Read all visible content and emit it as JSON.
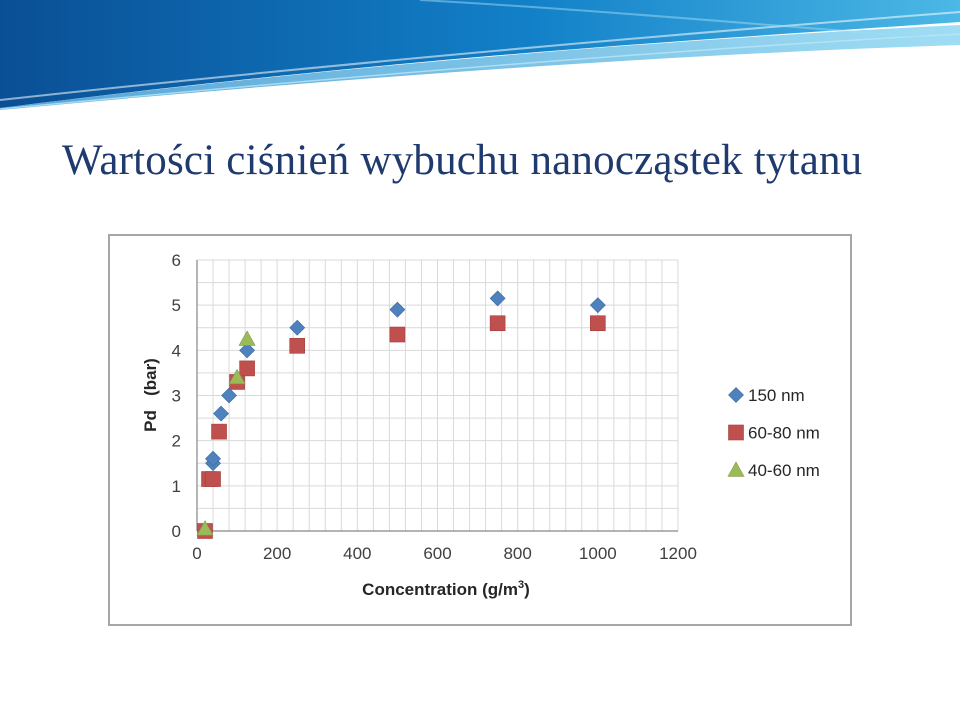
{
  "slide": {
    "title": "Wartości ciśnień wybuchu nanocząstek tytanu"
  },
  "colors": {
    "title": "#1f3a6e",
    "banner_dark": "#0b5fa8",
    "banner_light": "#5fc3e8",
    "grid": "#d9d9d9",
    "axis": "#868686"
  },
  "chart_data": {
    "type": "scatter",
    "xlabel": "Concentration (g/m",
    "xlabel_sup": "3",
    "xlabel_end": ")",
    "ylabel": "Pd   (bar)",
    "xlim": [
      0,
      1200
    ],
    "ylim": [
      0,
      6
    ],
    "xticks": [
      0,
      200,
      400,
      600,
      800,
      1000,
      1200
    ],
    "yticks": [
      0,
      1,
      2,
      3,
      4,
      5,
      6
    ],
    "grid": true,
    "legend_position": "right",
    "series": [
      {
        "name": "150 nm",
        "marker": "diamond",
        "color": "#4f81bd",
        "points": [
          [
            40,
            1.5
          ],
          [
            40,
            1.6
          ],
          [
            60,
            2.6
          ],
          [
            80,
            3.0
          ],
          [
            125,
            4.0
          ],
          [
            250,
            4.5
          ],
          [
            500,
            4.9
          ],
          [
            750,
            5.15
          ],
          [
            1000,
            5.0
          ]
        ]
      },
      {
        "name": "60-80 nm",
        "marker": "square",
        "color": "#c0504d",
        "points": [
          [
            20,
            0.0
          ],
          [
            30,
            1.15
          ],
          [
            40,
            1.15
          ],
          [
            55,
            2.2
          ],
          [
            100,
            3.3
          ],
          [
            125,
            3.6
          ],
          [
            250,
            4.1
          ],
          [
            500,
            4.35
          ],
          [
            750,
            4.6
          ],
          [
            1000,
            4.6
          ]
        ]
      },
      {
        "name": "40-60 nm",
        "marker": "triangle",
        "color": "#9bbb59",
        "points": [
          [
            20,
            0.05
          ],
          [
            100,
            3.4
          ],
          [
            125,
            4.25
          ]
        ]
      }
    ]
  }
}
